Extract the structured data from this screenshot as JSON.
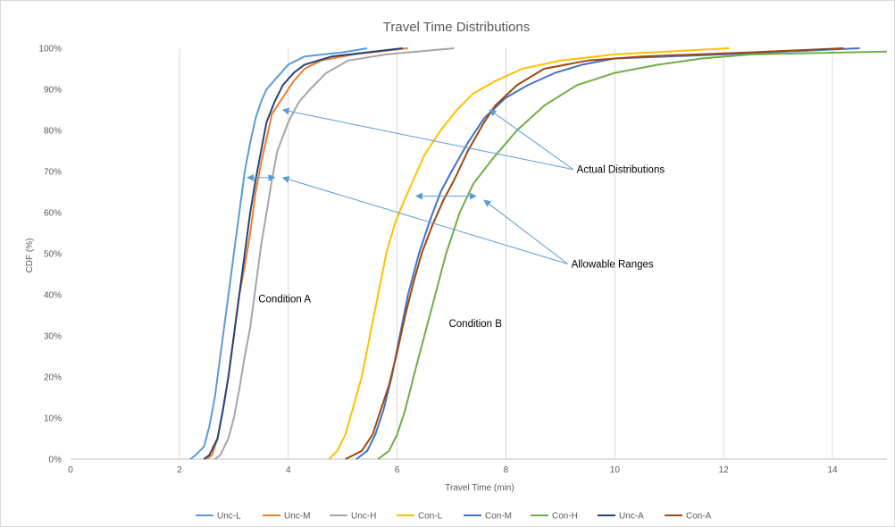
{
  "chart_data": {
    "type": "line",
    "title": "Travel Time Distributions",
    "xlabel": "Travel Time (min)",
    "ylabel": "CDF (%)",
    "xlim": [
      0,
      15
    ],
    "ylim": [
      0,
      100
    ],
    "x_ticks": [
      0,
      2,
      4,
      6,
      8,
      10,
      12,
      14
    ],
    "y_ticks": [
      "0%",
      "10%",
      "20%",
      "30%",
      "40%",
      "50%",
      "60%",
      "70%",
      "80%",
      "90%",
      "100%"
    ],
    "grid": "vertical",
    "legend_position": "bottom",
    "series": [
      {
        "name": "Unc-L",
        "color": "#5B9BD5",
        "points": [
          [
            2.2,
            0
          ],
          [
            2.3,
            1
          ],
          [
            2.45,
            3
          ],
          [
            2.55,
            8
          ],
          [
            2.65,
            15
          ],
          [
            2.75,
            25
          ],
          [
            2.85,
            35
          ],
          [
            2.95,
            45
          ],
          [
            3.0,
            50
          ],
          [
            3.1,
            60
          ],
          [
            3.2,
            70
          ],
          [
            3.3,
            77
          ],
          [
            3.4,
            83
          ],
          [
            3.5,
            87
          ],
          [
            3.6,
            90
          ],
          [
            3.8,
            93
          ],
          [
            4.0,
            96
          ],
          [
            4.3,
            98
          ],
          [
            5.0,
            99
          ],
          [
            5.45,
            100
          ]
        ]
      },
      {
        "name": "Unc-M",
        "color": "#ED7D31",
        "points": [
          [
            2.5,
            0
          ],
          [
            2.6,
            1
          ],
          [
            2.7,
            5
          ],
          [
            2.8,
            12
          ],
          [
            2.9,
            20
          ],
          [
            3.0,
            30
          ],
          [
            3.1,
            40
          ],
          [
            3.2,
            47
          ],
          [
            3.3,
            55
          ],
          [
            3.4,
            65
          ],
          [
            3.5,
            72
          ],
          [
            3.6,
            78
          ],
          [
            3.7,
            84
          ],
          [
            3.9,
            88
          ],
          [
            4.1,
            92
          ],
          [
            4.3,
            95
          ],
          [
            4.6,
            97
          ],
          [
            5.2,
            98.5
          ],
          [
            6.2,
            100
          ]
        ]
      },
      {
        "name": "Unc-H",
        "color": "#A5A5A5",
        "points": [
          [
            2.65,
            0
          ],
          [
            2.75,
            1
          ],
          [
            2.9,
            5
          ],
          [
            3.0,
            10
          ],
          [
            3.1,
            17
          ],
          [
            3.2,
            25
          ],
          [
            3.3,
            32
          ],
          [
            3.4,
            42
          ],
          [
            3.5,
            52
          ],
          [
            3.6,
            60
          ],
          [
            3.7,
            68
          ],
          [
            3.8,
            75
          ],
          [
            4.0,
            82
          ],
          [
            4.2,
            87
          ],
          [
            4.4,
            90
          ],
          [
            4.7,
            94
          ],
          [
            5.1,
            97
          ],
          [
            5.8,
            98.5
          ],
          [
            7.05,
            100
          ]
        ]
      },
      {
        "name": "Con-L",
        "color": "#FFC000",
        "points": [
          [
            4.75,
            0
          ],
          [
            4.9,
            2
          ],
          [
            5.05,
            6
          ],
          [
            5.2,
            13
          ],
          [
            5.35,
            20
          ],
          [
            5.5,
            30
          ],
          [
            5.65,
            40
          ],
          [
            5.8,
            50
          ],
          [
            5.95,
            57
          ],
          [
            6.1,
            62
          ],
          [
            6.3,
            68
          ],
          [
            6.5,
            74
          ],
          [
            6.8,
            80
          ],
          [
            7.1,
            85
          ],
          [
            7.4,
            89
          ],
          [
            7.8,
            92
          ],
          [
            8.3,
            95
          ],
          [
            9.0,
            97
          ],
          [
            10.0,
            98.5
          ],
          [
            12.1,
            100
          ]
        ]
      },
      {
        "name": "Con-M",
        "color": "#4472C4",
        "points": [
          [
            5.25,
            0
          ],
          [
            5.45,
            2
          ],
          [
            5.6,
            6
          ],
          [
            5.75,
            12
          ],
          [
            5.9,
            20
          ],
          [
            6.05,
            30
          ],
          [
            6.2,
            40
          ],
          [
            6.4,
            50
          ],
          [
            6.6,
            58
          ],
          [
            6.8,
            65
          ],
          [
            7.0,
            70
          ],
          [
            7.3,
            77
          ],
          [
            7.6,
            83
          ],
          [
            8.0,
            88
          ],
          [
            8.4,
            91
          ],
          [
            8.9,
            94
          ],
          [
            9.4,
            96
          ],
          [
            10.0,
            97.5
          ],
          [
            12.0,
            98.5
          ],
          [
            14.5,
            100
          ]
        ]
      },
      {
        "name": "Con-H",
        "color": "#70AD47",
        "points": [
          [
            5.65,
            0
          ],
          [
            5.85,
            2
          ],
          [
            6.0,
            6
          ],
          [
            6.15,
            12
          ],
          [
            6.3,
            20
          ],
          [
            6.5,
            30
          ],
          [
            6.7,
            40
          ],
          [
            6.9,
            50
          ],
          [
            7.15,
            60
          ],
          [
            7.4,
            67
          ],
          [
            7.75,
            73
          ],
          [
            8.2,
            80
          ],
          [
            8.7,
            86
          ],
          [
            9.3,
            91
          ],
          [
            10.0,
            94
          ],
          [
            10.8,
            96
          ],
          [
            11.6,
            97.5
          ],
          [
            12.5,
            98.5
          ],
          [
            15.0,
            99.2
          ]
        ]
      },
      {
        "name": "Unc-A",
        "color": "#264478",
        "points": [
          [
            2.45,
            0
          ],
          [
            2.55,
            1
          ],
          [
            2.7,
            5
          ],
          [
            2.8,
            12
          ],
          [
            2.9,
            20
          ],
          [
            3.0,
            30
          ],
          [
            3.1,
            40
          ],
          [
            3.2,
            50
          ],
          [
            3.3,
            60
          ],
          [
            3.4,
            68
          ],
          [
            3.5,
            75
          ],
          [
            3.6,
            82
          ],
          [
            3.75,
            87
          ],
          [
            3.9,
            91
          ],
          [
            4.1,
            94
          ],
          [
            4.3,
            96
          ],
          [
            4.8,
            98
          ],
          [
            6.1,
            100
          ]
        ]
      },
      {
        "name": "Con-A",
        "color": "#9E480E",
        "points": [
          [
            5.05,
            0
          ],
          [
            5.35,
            2
          ],
          [
            5.55,
            6
          ],
          [
            5.7,
            12
          ],
          [
            5.85,
            18
          ],
          [
            6.0,
            26
          ],
          [
            6.15,
            35
          ],
          [
            6.3,
            43
          ],
          [
            6.45,
            50
          ],
          [
            6.65,
            57
          ],
          [
            6.85,
            63
          ],
          [
            7.05,
            68
          ],
          [
            7.3,
            75
          ],
          [
            7.6,
            82
          ],
          [
            7.8,
            86
          ],
          [
            8.2,
            91
          ],
          [
            8.7,
            95
          ],
          [
            9.5,
            97
          ],
          [
            10.5,
            98
          ],
          [
            12.5,
            99
          ],
          [
            14.2,
            100
          ]
        ]
      }
    ],
    "annotations": [
      {
        "text": "Condition A",
        "x": 3.45,
        "y": 39
      },
      {
        "text": "Condition B",
        "x": 6.95,
        "y": 33
      },
      {
        "text": "Actual Distributions",
        "x": 9.3,
        "y": 70.5,
        "arrows_to": [
          [
            3.9,
            85
          ],
          [
            7.7,
            85
          ]
        ]
      },
      {
        "text": "Allowable Ranges",
        "x": 9.2,
        "y": 47.5,
        "arrows_to": [
          [
            3.9,
            68.5
          ],
          [
            7.6,
            63
          ]
        ]
      }
    ],
    "range_brackets": [
      {
        "x1": 3.25,
        "x2": 3.75,
        "y": 68.5
      },
      {
        "x1": 6.35,
        "x2": 7.45,
        "y": 64
      }
    ]
  }
}
